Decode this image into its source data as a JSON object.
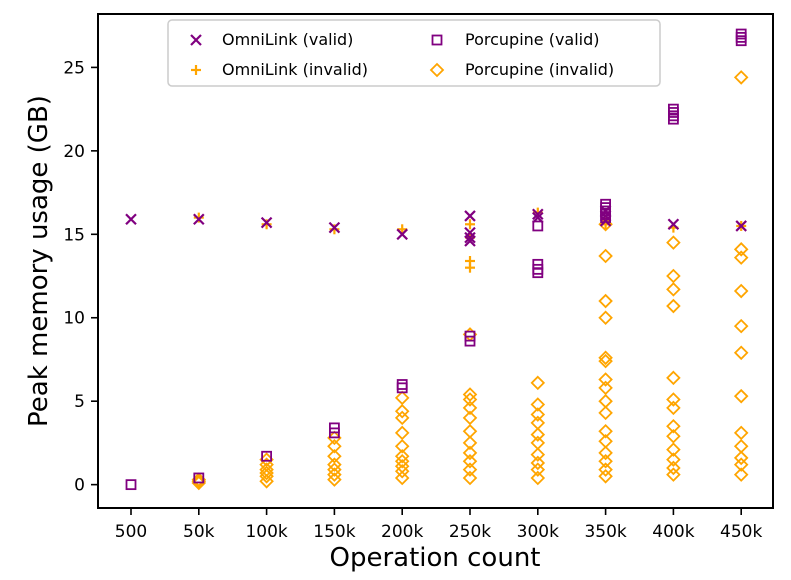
{
  "chart_data": {
    "type": "scatter",
    "title": "",
    "xlabel": "Operation count",
    "ylabel": "Peak memory usage (GB)",
    "categories": [
      "500",
      "50k",
      "100k",
      "150k",
      "200k",
      "250k",
      "300k",
      "350k",
      "400k",
      "450k"
    ],
    "yticks": [
      0,
      5,
      10,
      15,
      20,
      25
    ],
    "ylim": [
      -1.4,
      28.2
    ],
    "grid": false,
    "legend_position": "top-center",
    "colors": {
      "omnilink": "#800080",
      "porcupine": "#FFA500"
    },
    "series": [
      {
        "name": "OmniLink (valid)",
        "marker": "x",
        "color": "#800080",
        "points": [
          [
            0,
            15.9
          ],
          [
            1,
            15.9
          ],
          [
            2,
            15.7
          ],
          [
            3,
            15.4
          ],
          [
            4,
            15.0
          ],
          [
            5,
            16.1
          ],
          [
            5,
            15.1
          ],
          [
            5,
            14.8
          ],
          [
            5,
            14.6
          ],
          [
            6,
            16.2
          ],
          [
            6,
            16.0
          ],
          [
            7,
            16.1
          ],
          [
            7,
            15.8
          ],
          [
            7,
            16.4
          ],
          [
            8,
            15.6
          ],
          [
            9,
            15.5
          ]
        ]
      },
      {
        "name": "OmniLink (invalid)",
        "marker": "+",
        "color": "#FFA500",
        "points": [
          [
            1,
            16.0
          ],
          [
            2,
            15.6
          ],
          [
            3,
            15.3
          ],
          [
            4,
            15.3
          ],
          [
            5,
            15.6
          ],
          [
            5,
            13.4
          ],
          [
            5,
            13.0
          ],
          [
            5,
            14.8
          ],
          [
            6,
            16.3
          ],
          [
            7,
            15.6
          ],
          [
            8,
            15.4
          ],
          [
            9,
            15.5
          ]
        ]
      },
      {
        "name": "Porcupine (valid)",
        "marker": "square",
        "color": "#800080",
        "points": [
          [
            0,
            0.0
          ],
          [
            1,
            0.4
          ],
          [
            2,
            1.7
          ],
          [
            3,
            3.4
          ],
          [
            3,
            3.1
          ],
          [
            4,
            6.0
          ],
          [
            4,
            5.8
          ],
          [
            5,
            8.6
          ],
          [
            5,
            8.9
          ],
          [
            6,
            15.5
          ],
          [
            6,
            13.2
          ],
          [
            6,
            12.9
          ],
          [
            6,
            12.7
          ],
          [
            7,
            16.8
          ],
          [
            7,
            16.6
          ],
          [
            7,
            16.4
          ],
          [
            7,
            16.2
          ],
          [
            7,
            16.0
          ],
          [
            8,
            22.5
          ],
          [
            8,
            22.3
          ],
          [
            8,
            22.1
          ],
          [
            8,
            21.9
          ],
          [
            9,
            27.0
          ],
          [
            9,
            26.8
          ],
          [
            9,
            26.6
          ]
        ]
      },
      {
        "name": "Porcupine (invalid)",
        "marker": "diamond",
        "color": "#FFA500",
        "points": [
          [
            1,
            0.1
          ],
          [
            1,
            0.3
          ],
          [
            1,
            0.2
          ],
          [
            2,
            0.2
          ],
          [
            2,
            0.5
          ],
          [
            2,
            0.9
          ],
          [
            2,
            1.2
          ],
          [
            2,
            1.5
          ],
          [
            2,
            0.7
          ],
          [
            3,
            0.3
          ],
          [
            3,
            0.6
          ],
          [
            3,
            0.9
          ],
          [
            3,
            1.2
          ],
          [
            3,
            1.7
          ],
          [
            3,
            2.3
          ],
          [
            3,
            2.8
          ],
          [
            4,
            0.4
          ],
          [
            4,
            0.8
          ],
          [
            4,
            1.1
          ],
          [
            4,
            1.4
          ],
          [
            4,
            1.7
          ],
          [
            4,
            2.3
          ],
          [
            4,
            3.1
          ],
          [
            4,
            4.0
          ],
          [
            4,
            4.4
          ],
          [
            4,
            5.2
          ],
          [
            5,
            0.4
          ],
          [
            5,
            0.9
          ],
          [
            5,
            1.4
          ],
          [
            5,
            1.9
          ],
          [
            5,
            2.5
          ],
          [
            5,
            3.2
          ],
          [
            5,
            4.0
          ],
          [
            5,
            4.6
          ],
          [
            5,
            5.1
          ],
          [
            5,
            5.4
          ],
          [
            5,
            9.0
          ],
          [
            6,
            0.4
          ],
          [
            6,
            0.9
          ],
          [
            6,
            1.3
          ],
          [
            6,
            1.8
          ],
          [
            6,
            2.5
          ],
          [
            6,
            3.0
          ],
          [
            6,
            3.7
          ],
          [
            6,
            4.2
          ],
          [
            6,
            4.8
          ],
          [
            6,
            6.1
          ],
          [
            7,
            0.5
          ],
          [
            7,
            0.9
          ],
          [
            7,
            1.4
          ],
          [
            7,
            1.9
          ],
          [
            7,
            2.6
          ],
          [
            7,
            3.2
          ],
          [
            7,
            4.3
          ],
          [
            7,
            5.0
          ],
          [
            7,
            5.8
          ],
          [
            7,
            6.3
          ],
          [
            7,
            7.4
          ],
          [
            7,
            7.6
          ],
          [
            7,
            10.0
          ],
          [
            7,
            11.0
          ],
          [
            7,
            13.7
          ],
          [
            7,
            15.6
          ],
          [
            8,
            0.6
          ],
          [
            8,
            1.0
          ],
          [
            8,
            1.5
          ],
          [
            8,
            2.1
          ],
          [
            8,
            2.9
          ],
          [
            8,
            3.5
          ],
          [
            8,
            4.6
          ],
          [
            8,
            5.1
          ],
          [
            8,
            6.4
          ],
          [
            8,
            10.7
          ],
          [
            8,
            11.7
          ],
          [
            8,
            12.5
          ],
          [
            8,
            14.5
          ],
          [
            9,
            0.6
          ],
          [
            9,
            1.2
          ],
          [
            9,
            1.6
          ],
          [
            9,
            2.3
          ],
          [
            9,
            3.1
          ],
          [
            9,
            5.3
          ],
          [
            9,
            7.9
          ],
          [
            9,
            9.5
          ],
          [
            9,
            11.6
          ],
          [
            9,
            13.6
          ],
          [
            9,
            14.1
          ],
          [
            9,
            24.4
          ]
        ]
      }
    ]
  }
}
